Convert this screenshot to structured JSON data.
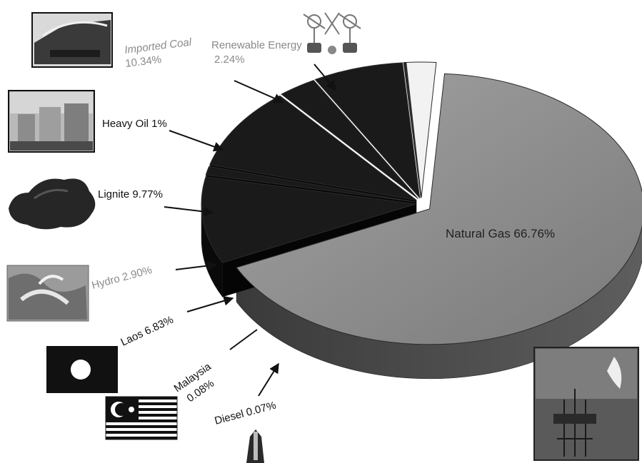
{
  "chart_data": {
    "type": "pie",
    "title": "",
    "categories": [
      "Natural Gas",
      "Imported Coal",
      "Heavy Oil",
      "Lignite",
      "Hydro",
      "Laos",
      "Malaysia",
      "Diesel",
      "Renewable Energy"
    ],
    "values": [
      66.76,
      10.34,
      1,
      9.77,
      2.9,
      6.83,
      0.08,
      0.07,
      2.24
    ],
    "labels": {
      "natural_gas": "Natural Gas 66.76%",
      "imported_coal_name": "Imported Coal",
      "imported_coal_value": "10.34%",
      "renewable_name": "Renewable Energy",
      "renewable_value": "2.24%",
      "heavy_oil": "Heavy Oil  1%",
      "lignite": "Lignite 9.77%",
      "hydro": "Hydro 2.90%",
      "laos": "Laos  6.83%",
      "malaysia_name": "Malaysia",
      "malaysia_value": "0.08%",
      "diesel": "Diesel  0.07%"
    },
    "colors": {
      "natural_gas_top": "#8f8f8f",
      "natural_gas_side": "#4d4d4d",
      "dark_slice": "#1a1a1a",
      "dark_side": "#0a0a0a",
      "renewable": "#f2f2f2"
    },
    "style": "3d-exploded-pie",
    "legend": "none"
  },
  "icons": [
    "coal-train-photo-icon",
    "wind-turbine-icon",
    "oil-tanks-photo-icon",
    "lignite-rock-icon",
    "hydro-dam-photo-icon",
    "laos-flag-icon",
    "malaysia-flag-icon",
    "diesel-tank-icon",
    "offshore-rig-photo-icon"
  ]
}
